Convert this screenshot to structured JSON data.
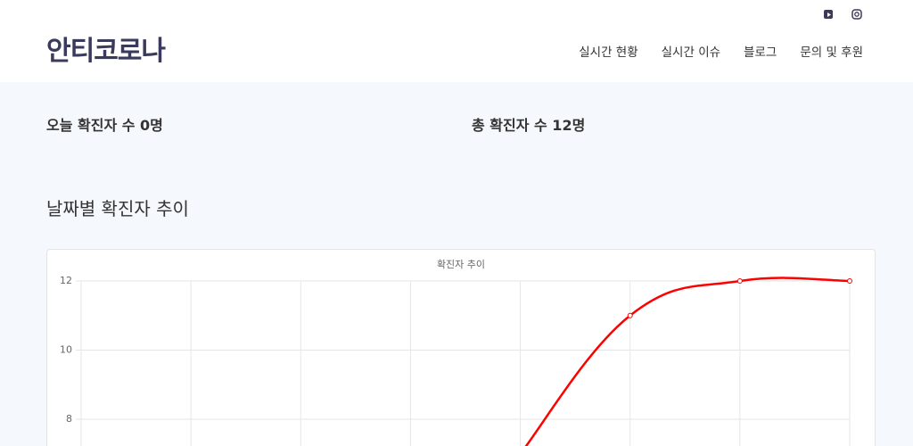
{
  "header": {
    "logo": "안티코로나",
    "nav": [
      "실시간 현황",
      "실시간 이슈",
      "블로그",
      "문의 및 후원"
    ]
  },
  "stats": {
    "today": "오늘 확진자 수 0명",
    "total": "총 확진자 수 12명"
  },
  "section_title": "날짜별 확진자 추이",
  "chart_data": {
    "type": "line",
    "title": "확진자 추이",
    "categories": [
      null,
      null,
      null,
      null,
      null,
      null,
      null,
      null
    ],
    "series": [
      {
        "color": "#ff0000",
        "values": [
          null,
          null,
          null,
          null,
          7,
          11,
          12,
          12
        ]
      }
    ],
    "ylim": [
      7.2,
      12
    ],
    "yticks": [
      8,
      10,
      12
    ],
    "grid": true
  }
}
